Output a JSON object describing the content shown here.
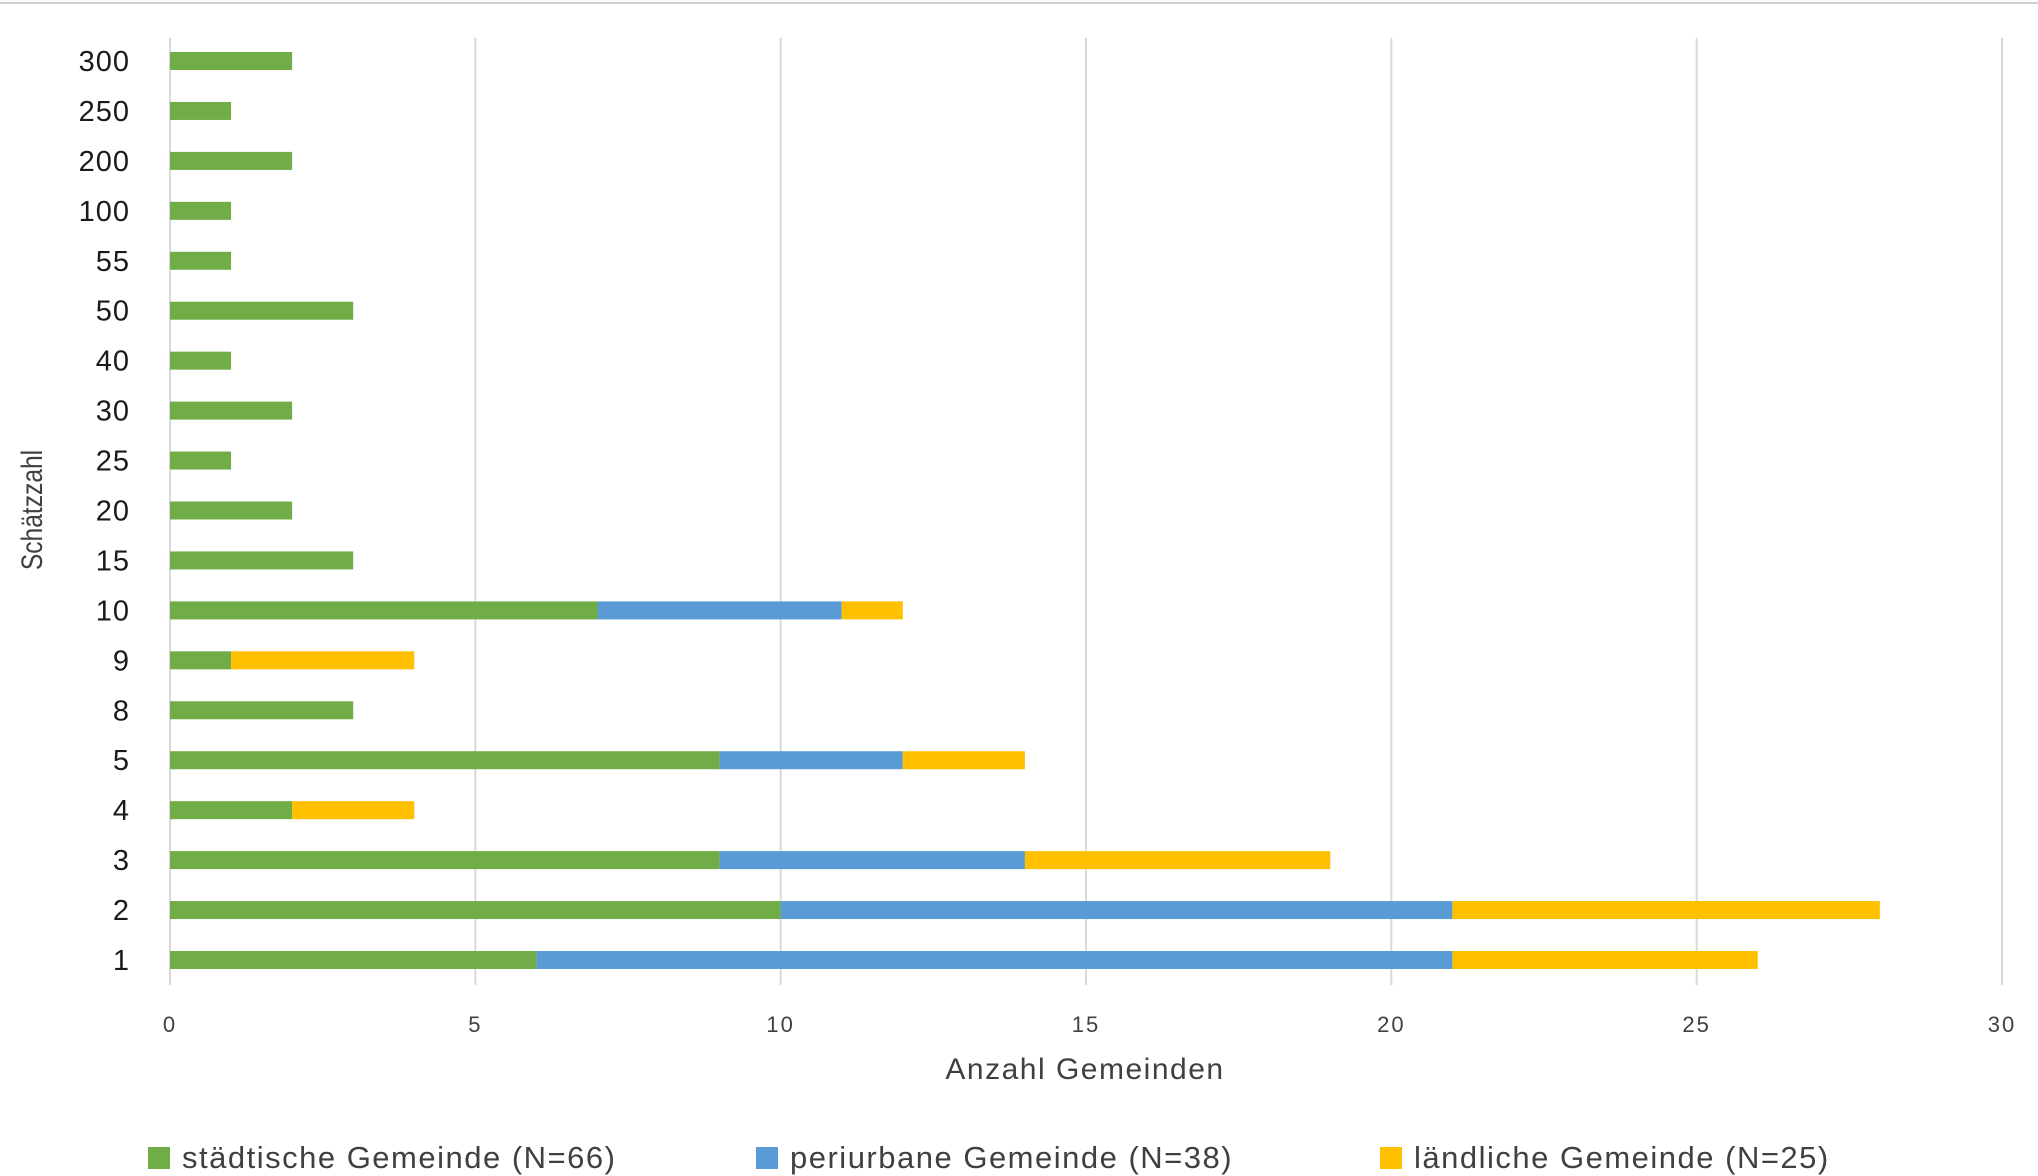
{
  "chart_data": {
    "type": "bar",
    "orientation": "horizontal",
    "stacked": true,
    "categories": [
      "1",
      "2",
      "3",
      "4",
      "5",
      "8",
      "9",
      "10",
      "15",
      "20",
      "25",
      "30",
      "40",
      "50",
      "55",
      "100",
      "200",
      "250",
      "300"
    ],
    "series": [
      {
        "name": "städtische Gemeinde (N=66)",
        "color": "#70AD47",
        "values": [
          6,
          10,
          9,
          2,
          9,
          3,
          1,
          7,
          3,
          2,
          1,
          2,
          1,
          3,
          1,
          1,
          2,
          1,
          2
        ]
      },
      {
        "name": "periurbane Gemeinde (N=38)",
        "color": "#5B9BD5",
        "values": [
          15,
          11,
          5,
          0,
          3,
          0,
          0,
          4,
          0,
          0,
          0,
          0,
          0,
          0,
          0,
          0,
          0,
          0,
          0
        ]
      },
      {
        "name": "ländliche Gemeinde (N=25)",
        "color": "#FFC000",
        "values": [
          5,
          7,
          5,
          2,
          2,
          0,
          3,
          1,
          0,
          0,
          0,
          0,
          0,
          0,
          0,
          0,
          0,
          0,
          0
        ]
      }
    ],
    "xlabel": "Anzahl Gemeinden",
    "ylabel": "Schätzzahl",
    "xlim": [
      0,
      30
    ],
    "xticks": [
      "0",
      "5",
      "10",
      "15",
      "20",
      "25",
      "30"
    ],
    "grid": "vertical",
    "legend_position": "bottom"
  }
}
